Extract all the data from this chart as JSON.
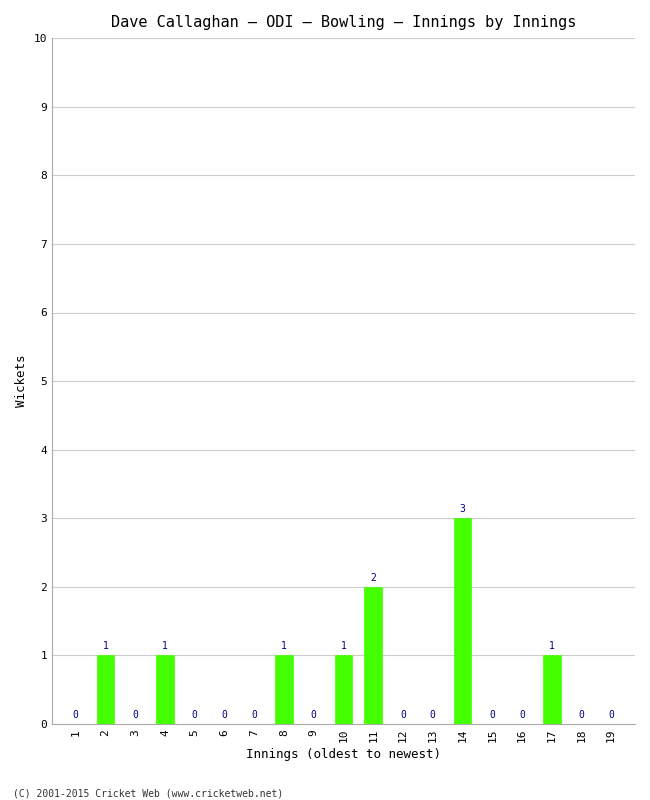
{
  "title": "Dave Callaghan – ODI – Bowling – Innings by Innings",
  "xlabel": "Innings (oldest to newest)",
  "ylabel": "Wickets",
  "footnote": "(C) 2001-2015 Cricket Web (www.cricketweb.net)",
  "innings": [
    1,
    2,
    3,
    4,
    5,
    6,
    7,
    8,
    9,
    10,
    11,
    12,
    13,
    14,
    15,
    16,
    17,
    18,
    19
  ],
  "wickets": [
    0,
    1,
    0,
    1,
    0,
    0,
    0,
    1,
    0,
    1,
    2,
    0,
    0,
    3,
    0,
    0,
    1,
    0,
    0
  ],
  "bar_color": "#44ff00",
  "label_color": "#000080",
  "ylim": [
    0,
    10
  ],
  "yticks": [
    0,
    1,
    2,
    3,
    4,
    5,
    6,
    7,
    8,
    9,
    10
  ],
  "background_color": "#ffffff",
  "grid_color": "#cccccc",
  "title_fontsize": 11,
  "axis_label_fontsize": 9,
  "tick_fontsize": 8,
  "annotation_fontsize": 7,
  "footnote_fontsize": 7
}
